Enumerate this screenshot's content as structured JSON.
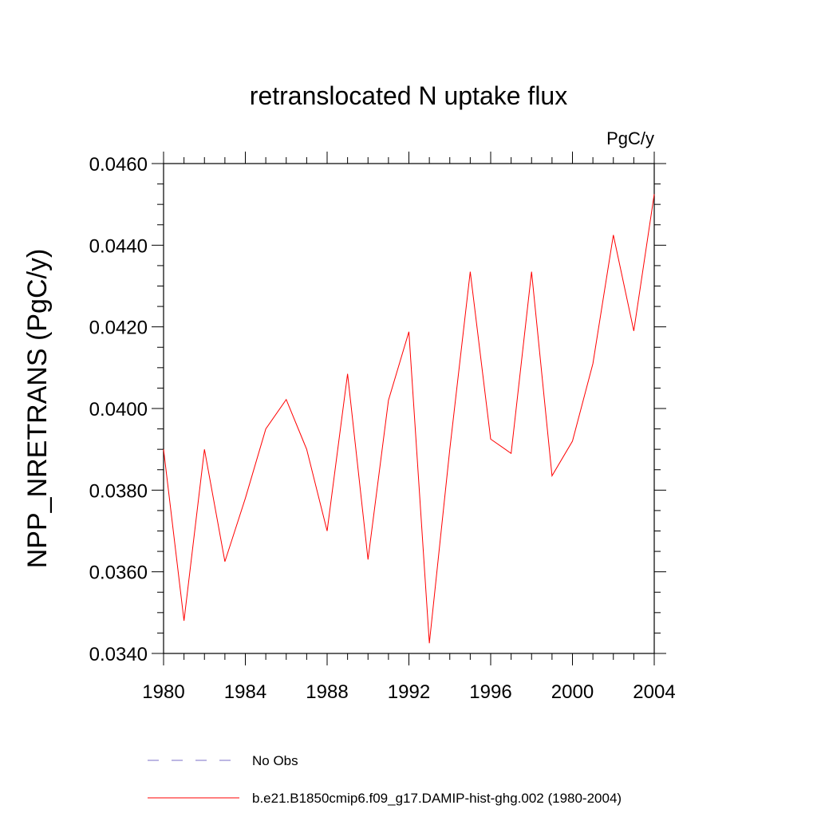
{
  "chart_data": {
    "type": "line",
    "title": "retranslocated N uptake flux",
    "units_label": "PgC/y",
    "ylabel": "NPP_NRETRANS  (PgC/y)",
    "xlabel": "",
    "xlim": [
      1980,
      2004
    ],
    "ylim": [
      0.034,
      0.046
    ],
    "x_ticks": [
      1980,
      1984,
      1988,
      1992,
      1996,
      2000,
      2004
    ],
    "x_tick_labels": [
      "1980",
      "1984",
      "1988",
      "1992",
      "1996",
      "2000",
      "2004"
    ],
    "y_ticks": [
      0.034,
      0.036,
      0.038,
      0.04,
      0.042,
      0.044,
      0.046
    ],
    "y_tick_labels": [
      "0.0340",
      "0.0360",
      "0.0380",
      "0.0400",
      "0.0420",
      "0.0440",
      "0.0460"
    ],
    "grid": false,
    "legend_position": "bottom",
    "series": [
      {
        "name": "b.e21.B1850cmip6.f09_g17.DAMIP-hist-ghg.002 (1980-2004)",
        "color": "#ff0000",
        "style": "solid",
        "x": [
          1980,
          1981,
          1982,
          1983,
          1984,
          1985,
          1986,
          1987,
          1988,
          1989,
          1990,
          1991,
          1992,
          1993,
          1994,
          1995,
          1996,
          1997,
          1998,
          1999,
          2000,
          2001,
          2002,
          2003,
          2004
        ],
        "y": [
          0.039,
          0.0348,
          0.039,
          0.03625,
          0.0378,
          0.0395,
          0.04022,
          0.039,
          0.037,
          0.04085,
          0.0363,
          0.0402,
          0.04188,
          0.03425,
          0.039,
          0.04335,
          0.03925,
          0.0389,
          0.04335,
          0.03835,
          0.0392,
          0.0411,
          0.04425,
          0.0419,
          0.04525
        ]
      }
    ],
    "legend": [
      {
        "label": "No Obs",
        "color": "#7b6fc7",
        "style": "dashed"
      },
      {
        "label": "b.e21.B1850cmip6.f09_g17.DAMIP-hist-ghg.002 (1980-2004)",
        "color": "#ff0000",
        "style": "solid"
      }
    ]
  }
}
